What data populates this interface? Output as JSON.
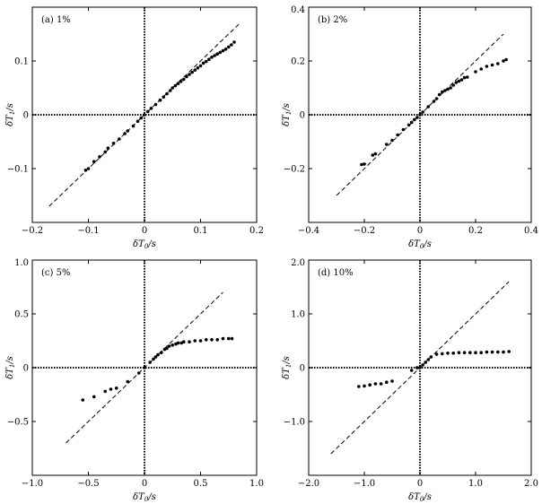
{
  "chart_data": [
    {
      "type": "scatter",
      "panel_label": "(a) 1%",
      "xlabel": "δT_0/s",
      "ylabel": "δT_1/s",
      "xlim": [
        -0.2,
        0.2
      ],
      "ylim": [
        -0.2,
        0.2
      ],
      "xticks": [
        -0.2,
        -0.1,
        0,
        0.1,
        0.2
      ],
      "xtick_labels": [
        "−0.2",
        "−0.1",
        "0",
        "0.1",
        "0.2"
      ],
      "yticks": [
        -0.1,
        0,
        0.1
      ],
      "ytick_labels": [
        "−0.1",
        "0",
        "0.1"
      ],
      "reference_line": [
        [
          -0.17,
          -0.17
        ],
        [
          0.17,
          0.17
        ]
      ],
      "points": [
        [
          -0.105,
          -0.103
        ],
        [
          -0.1,
          -0.1
        ],
        [
          -0.09,
          -0.087
        ],
        [
          -0.08,
          -0.078
        ],
        [
          -0.07,
          -0.069
        ],
        [
          -0.065,
          -0.062
        ],
        [
          -0.055,
          -0.053
        ],
        [
          -0.045,
          -0.045
        ],
        [
          -0.035,
          -0.035
        ],
        [
          -0.03,
          -0.03
        ],
        [
          -0.02,
          -0.021
        ],
        [
          -0.012,
          -0.012
        ],
        [
          -0.006,
          -0.006
        ],
        [
          0.0,
          0.0
        ],
        [
          0.006,
          0.006
        ],
        [
          0.012,
          0.012
        ],
        [
          0.02,
          0.019
        ],
        [
          0.028,
          0.027
        ],
        [
          0.034,
          0.033
        ],
        [
          0.04,
          0.039
        ],
        [
          0.046,
          0.045
        ],
        [
          0.05,
          0.05
        ],
        [
          0.055,
          0.054
        ],
        [
          0.06,
          0.058
        ],
        [
          0.065,
          0.062
        ],
        [
          0.07,
          0.066
        ],
        [
          0.075,
          0.071
        ],
        [
          0.08,
          0.075
        ],
        [
          0.085,
          0.079
        ],
        [
          0.09,
          0.083
        ],
        [
          0.095,
          0.087
        ],
        [
          0.1,
          0.091
        ],
        [
          0.105,
          0.096
        ],
        [
          0.11,
          0.099
        ],
        [
          0.115,
          0.103
        ],
        [
          0.12,
          0.107
        ],
        [
          0.125,
          0.11
        ],
        [
          0.13,
          0.113
        ],
        [
          0.135,
          0.116
        ],
        [
          0.14,
          0.119
        ],
        [
          0.145,
          0.122
        ],
        [
          0.15,
          0.126
        ],
        [
          0.155,
          0.13
        ],
        [
          0.16,
          0.135
        ]
      ]
    },
    {
      "type": "scatter",
      "panel_label": "(b) 2%",
      "xlabel": "δT_0/s",
      "ylabel": "δT_1/s",
      "xlim": [
        -0.4,
        0.4
      ],
      "ylim": [
        -0.4,
        0.4
      ],
      "xticks": [
        -0.4,
        -0.2,
        0,
        0.2,
        0.4
      ],
      "xtick_labels": [
        "−0.4",
        "−0.2",
        "0",
        "0.2",
        "0.4"
      ],
      "yticks": [
        -0.2,
        0,
        0.2,
        0.4
      ],
      "ytick_labels": [
        "−0.2",
        "0",
        "0.2",
        "0.4"
      ],
      "reference_line": [
        [
          -0.3,
          -0.3
        ],
        [
          0.3,
          0.3
        ]
      ],
      "points": [
        [
          -0.21,
          -0.185
        ],
        [
          -0.2,
          -0.183
        ],
        [
          -0.17,
          -0.15
        ],
        [
          -0.16,
          -0.145
        ],
        [
          -0.12,
          -0.11
        ],
        [
          -0.1,
          -0.095
        ],
        [
          -0.08,
          -0.075
        ],
        [
          -0.06,
          -0.055
        ],
        [
          -0.04,
          -0.038
        ],
        [
          -0.03,
          -0.028
        ],
        [
          -0.02,
          -0.018
        ],
        [
          -0.01,
          -0.01
        ],
        [
          0.0,
          0.0
        ],
        [
          0.01,
          0.01
        ],
        [
          0.03,
          0.03
        ],
        [
          0.05,
          0.05
        ],
        [
          0.06,
          0.06
        ],
        [
          0.07,
          0.075
        ],
        [
          0.08,
          0.085
        ],
        [
          0.09,
          0.09
        ],
        [
          0.1,
          0.095
        ],
        [
          0.11,
          0.1
        ],
        [
          0.12,
          0.11
        ],
        [
          0.13,
          0.12
        ],
        [
          0.14,
          0.125
        ],
        [
          0.15,
          0.13
        ],
        [
          0.16,
          0.138
        ],
        [
          0.17,
          0.14
        ],
        [
          0.2,
          0.16
        ],
        [
          0.22,
          0.17
        ],
        [
          0.24,
          0.18
        ],
        [
          0.26,
          0.185
        ],
        [
          0.28,
          0.19
        ],
        [
          0.3,
          0.2
        ],
        [
          0.31,
          0.205
        ]
      ]
    },
    {
      "type": "scatter",
      "panel_label": "(c) 5%",
      "xlabel": "δT_0/s",
      "ylabel": "δT_1/s",
      "xlim": [
        -1.0,
        1.0
      ],
      "ylim": [
        -1.0,
        1.0
      ],
      "xticks": [
        -1.0,
        -0.5,
        0,
        0.5,
        1.0
      ],
      "xtick_labels": [
        "−1.0",
        "−0.5",
        "0",
        "0.5",
        "1.0"
      ],
      "yticks": [
        -0.5,
        0,
        0.5,
        1.0
      ],
      "ytick_labels": [
        "−0.5",
        "0",
        "0.5",
        "1.0"
      ],
      "reference_line": [
        [
          -0.7,
          -0.7
        ],
        [
          0.7,
          0.7
        ]
      ],
      "points": [
        [
          -0.55,
          -0.3
        ],
        [
          -0.45,
          -0.27
        ],
        [
          -0.35,
          -0.22
        ],
        [
          -0.3,
          -0.2
        ],
        [
          -0.25,
          -0.19
        ],
        [
          -0.15,
          -0.13
        ],
        [
          -0.05,
          -0.05
        ],
        [
          0.0,
          0.0
        ],
        [
          0.05,
          0.05
        ],
        [
          0.08,
          0.08
        ],
        [
          0.1,
          0.1
        ],
        [
          0.12,
          0.12
        ],
        [
          0.15,
          0.14
        ],
        [
          0.18,
          0.17
        ],
        [
          0.2,
          0.18
        ],
        [
          0.22,
          0.2
        ],
        [
          0.25,
          0.21
        ],
        [
          0.28,
          0.22
        ],
        [
          0.3,
          0.23
        ],
        [
          0.33,
          0.23
        ],
        [
          0.35,
          0.24
        ],
        [
          0.4,
          0.24
        ],
        [
          0.45,
          0.25
        ],
        [
          0.5,
          0.25
        ],
        [
          0.55,
          0.26
        ],
        [
          0.6,
          0.26
        ],
        [
          0.65,
          0.26
        ],
        [
          0.7,
          0.27
        ],
        [
          0.75,
          0.27
        ],
        [
          0.78,
          0.27
        ]
      ]
    },
    {
      "type": "scatter",
      "panel_label": "(d) 10%",
      "xlabel": "δT_0/s",
      "ylabel": "δT_1/s",
      "xlim": [
        -2.0,
        2.0
      ],
      "ylim": [
        -2.0,
        2.0
      ],
      "xticks": [
        -2.0,
        -1.0,
        0,
        1.0,
        2.0
      ],
      "xtick_labels": [
        "−2.0",
        "−1.0",
        "0",
        "1.0",
        "2.0"
      ],
      "yticks": [
        -1.0,
        0,
        1.0,
        2.0
      ],
      "ytick_labels": [
        "−1.0",
        "0",
        "1.0",
        "2.0"
      ],
      "reference_line": [
        [
          -1.6,
          -1.6
        ],
        [
          1.6,
          1.6
        ]
      ],
      "points": [
        [
          -1.1,
          -0.35
        ],
        [
          -1.0,
          -0.34
        ],
        [
          -0.9,
          -0.32
        ],
        [
          -0.8,
          -0.3
        ],
        [
          -0.7,
          -0.3
        ],
        [
          -0.6,
          -0.27
        ],
        [
          -0.5,
          -0.25
        ],
        [
          -0.15,
          -0.05
        ],
        [
          -0.05,
          0.0
        ],
        [
          0.0,
          0.0
        ],
        [
          0.05,
          0.05
        ],
        [
          0.1,
          0.1
        ],
        [
          0.15,
          0.15
        ],
        [
          0.2,
          0.2
        ],
        [
          0.3,
          0.25
        ],
        [
          0.4,
          0.26
        ],
        [
          0.5,
          0.27
        ],
        [
          0.6,
          0.27
        ],
        [
          0.7,
          0.28
        ],
        [
          0.8,
          0.28
        ],
        [
          0.9,
          0.28
        ],
        [
          1.0,
          0.28
        ],
        [
          1.1,
          0.28
        ],
        [
          1.2,
          0.29
        ],
        [
          1.3,
          0.29
        ],
        [
          1.4,
          0.29
        ],
        [
          1.5,
          0.29
        ],
        [
          1.6,
          0.3
        ]
      ]
    }
  ]
}
